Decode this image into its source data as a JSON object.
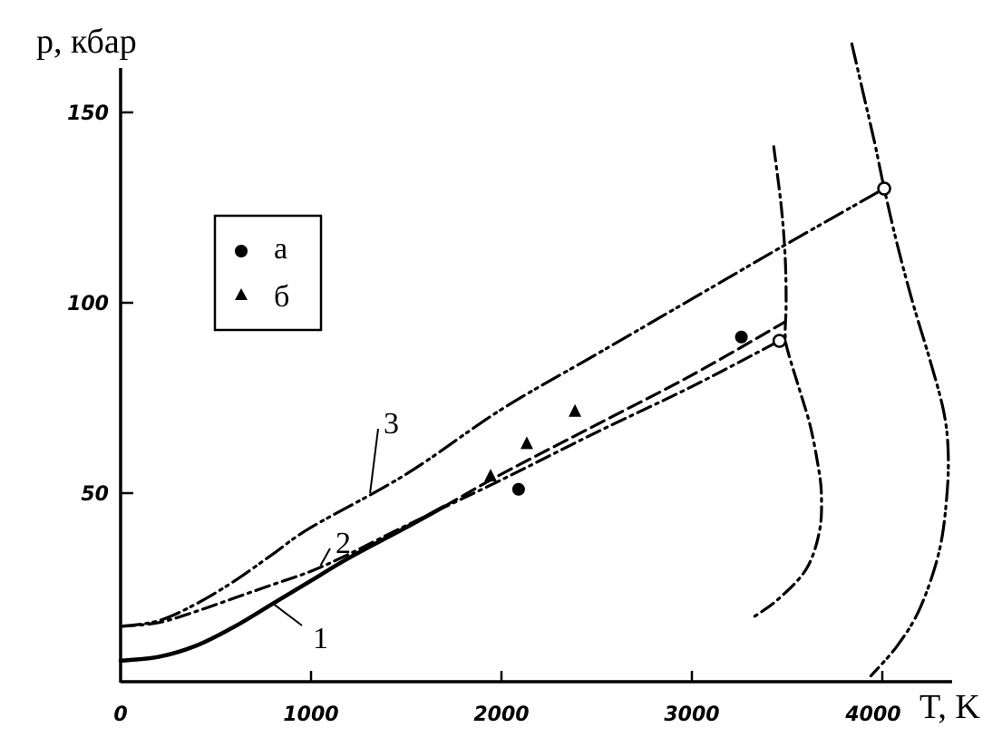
{
  "chart_data": {
    "type": "line",
    "title": "",
    "xlabel": "T, K",
    "ylabel": "p, кбар",
    "xlim": [
      0,
      4400
    ],
    "ylim": [
      0,
      165
    ],
    "xticks": [
      {
        "v": 0,
        "label": "0"
      },
      {
        "v": 1000,
        "label": "1000"
      },
      {
        "v": 2000,
        "label": "2000"
      },
      {
        "v": 3000,
        "label": "3000"
      },
      {
        "v": 4000,
        "label": "4000"
      }
    ],
    "yticks": [
      {
        "v": 50,
        "label": "50"
      },
      {
        "v": 100,
        "label": "100"
      },
      {
        "v": 150,
        "label": "150"
      }
    ],
    "grid": false,
    "series": [
      {
        "name": "1",
        "label": "1",
        "style": "solid",
        "points": [
          [
            0,
            6
          ],
          [
            200,
            7
          ],
          [
            400,
            10
          ],
          [
            600,
            15
          ],
          [
            800,
            21
          ],
          [
            1000,
            27
          ],
          [
            1200,
            33
          ],
          [
            1500,
            41
          ],
          [
            1700,
            46.5
          ]
        ]
      },
      {
        "name": "1-dashed",
        "label": "",
        "style": "dashed",
        "points": [
          [
            1700,
            46.5
          ],
          [
            2000,
            55
          ],
          [
            2500,
            68
          ],
          [
            3000,
            81
          ],
          [
            3490,
            95
          ]
        ]
      },
      {
        "name": "2",
        "label": "2",
        "style": "dashdot",
        "points": [
          [
            0,
            15
          ],
          [
            200,
            16
          ],
          [
            400,
            19
          ],
          [
            600,
            22.5
          ],
          [
            800,
            26
          ],
          [
            1000,
            29.5
          ],
          [
            1200,
            34
          ],
          [
            1500,
            41.5
          ],
          [
            2000,
            53.5
          ],
          [
            2500,
            66
          ],
          [
            3000,
            78
          ],
          [
            3460,
            90
          ]
        ]
      },
      {
        "name": "3",
        "label": "3",
        "style": "dashdotdot",
        "points": [
          [
            0,
            15
          ],
          [
            200,
            16.5
          ],
          [
            400,
            21
          ],
          [
            600,
            27
          ],
          [
            800,
            34
          ],
          [
            1000,
            41
          ],
          [
            1500,
            55
          ],
          [
            2000,
            72
          ],
          [
            2500,
            86.5
          ],
          [
            3000,
            101
          ],
          [
            3500,
            115.5
          ],
          [
            4010,
            130
          ]
        ]
      },
      {
        "name": "melting-left",
        "label": "",
        "style": "dashdot",
        "points": [
          [
            3430,
            141
          ],
          [
            3470,
            125
          ],
          [
            3490,
            112
          ],
          [
            3495,
            100
          ],
          [
            3490,
            92
          ],
          [
            3500,
            88
          ],
          [
            3560,
            78
          ],
          [
            3620,
            68
          ],
          [
            3660,
            58
          ],
          [
            3680,
            50
          ],
          [
            3670,
            40
          ],
          [
            3600,
            30
          ],
          [
            3450,
            22
          ],
          [
            3310,
            17
          ]
        ]
      },
      {
        "name": "melting-right",
        "label": "",
        "style": "dashdotdot",
        "points": [
          [
            3840,
            168
          ],
          [
            3900,
            155
          ],
          [
            3960,
            142
          ],
          [
            4010,
            130
          ],
          [
            4080,
            115
          ],
          [
            4160,
            100
          ],
          [
            4250,
            85
          ],
          [
            4320,
            72
          ],
          [
            4345,
            62
          ],
          [
            4340,
            50
          ],
          [
            4300,
            35
          ],
          [
            4200,
            20
          ],
          [
            4080,
            10
          ],
          [
            3940,
            2
          ]
        ]
      }
    ],
    "open_circles": [
      [
        3460,
        90
      ],
      [
        4010,
        130
      ]
    ],
    "scatter": [
      {
        "name": "а",
        "marker": "circle",
        "points": [
          [
            2090,
            51
          ],
          [
            3260,
            91
          ]
        ]
      },
      {
        "name": "б",
        "marker": "triangle",
        "points": [
          [
            1943,
            54.5
          ],
          [
            2133,
            63
          ],
          [
            2386,
            71.5
          ]
        ]
      }
    ],
    "legend": {
      "position": "upper-left",
      "entries": [
        "а",
        "б"
      ]
    },
    "curve_labels": [
      {
        "text": "3",
        "at": [
          1310,
          50
        ]
      },
      {
        "text": "2",
        "at": [
          1050,
          31
        ]
      },
      {
        "text": "1",
        "at": [
          800,
          21
        ]
      }
    ]
  }
}
